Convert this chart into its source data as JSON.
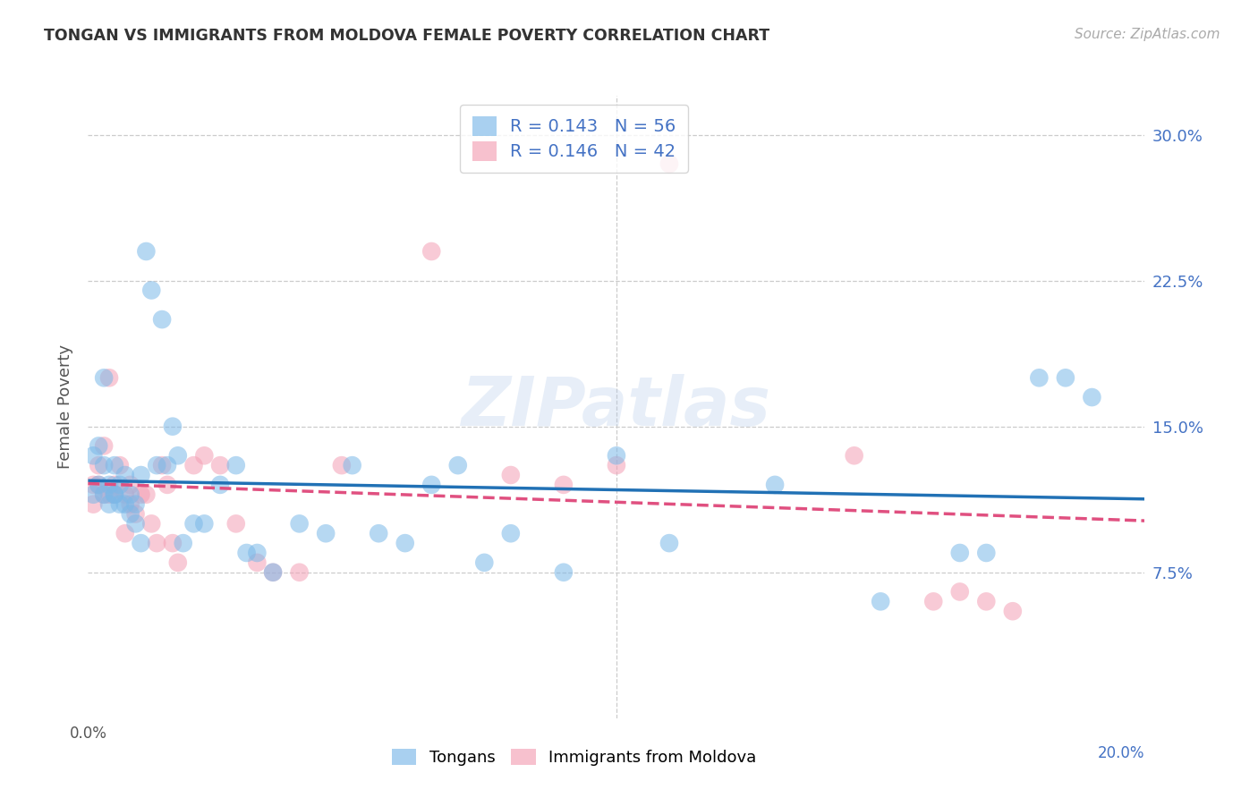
{
  "title": "TONGAN VS IMMIGRANTS FROM MOLDOVA FEMALE POVERTY CORRELATION CHART",
  "source": "Source: ZipAtlas.com",
  "ylabel": "Female Poverty",
  "xlim": [
    0.0,
    0.2
  ],
  "ylim": [
    0.0,
    0.32
  ],
  "ytick_positions": [
    0.0,
    0.075,
    0.15,
    0.225,
    0.3
  ],
  "ytick_labels": [
    "",
    "7.5%",
    "15.0%",
    "22.5%",
    "30.0%"
  ],
  "xtick_positions": [
    0.0,
    0.04,
    0.08,
    0.12,
    0.16,
    0.2
  ],
  "xtick_labels": [
    "0.0%",
    "",
    "",
    "",
    "",
    ""
  ],
  "legend_label1": "R = 0.143   N = 56",
  "legend_label2": "R = 0.146   N = 42",
  "legend_text_color": "#4472c4",
  "tongan_color": "#7bb8e8",
  "moldova_color": "#f4a0b5",
  "trendline_blue": "#2171b5",
  "trendline_pink": "#e05080",
  "background_color": "#ffffff",
  "grid_color": "#cccccc",
  "tongan_x": [
    0.001,
    0.001,
    0.002,
    0.002,
    0.003,
    0.003,
    0.003,
    0.004,
    0.004,
    0.005,
    0.005,
    0.005,
    0.006,
    0.006,
    0.007,
    0.007,
    0.008,
    0.008,
    0.009,
    0.009,
    0.01,
    0.01,
    0.011,
    0.012,
    0.013,
    0.014,
    0.015,
    0.016,
    0.017,
    0.018,
    0.02,
    0.022,
    0.025,
    0.028,
    0.03,
    0.032,
    0.035,
    0.04,
    0.045,
    0.05,
    0.055,
    0.06,
    0.065,
    0.07,
    0.075,
    0.08,
    0.09,
    0.1,
    0.11,
    0.13,
    0.15,
    0.165,
    0.17,
    0.18,
    0.185,
    0.19
  ],
  "tongan_y": [
    0.135,
    0.115,
    0.14,
    0.12,
    0.13,
    0.115,
    0.175,
    0.12,
    0.11,
    0.115,
    0.115,
    0.13,
    0.12,
    0.11,
    0.125,
    0.11,
    0.115,
    0.105,
    0.11,
    0.1,
    0.125,
    0.09,
    0.24,
    0.22,
    0.13,
    0.205,
    0.13,
    0.15,
    0.135,
    0.09,
    0.1,
    0.1,
    0.12,
    0.13,
    0.085,
    0.085,
    0.075,
    0.1,
    0.095,
    0.13,
    0.095,
    0.09,
    0.12,
    0.13,
    0.08,
    0.095,
    0.075,
    0.135,
    0.09,
    0.12,
    0.06,
    0.085,
    0.085,
    0.175,
    0.175,
    0.165
  ],
  "moldova_x": [
    0.001,
    0.001,
    0.002,
    0.002,
    0.003,
    0.003,
    0.004,
    0.004,
    0.005,
    0.005,
    0.006,
    0.007,
    0.007,
    0.008,
    0.008,
    0.009,
    0.01,
    0.011,
    0.012,
    0.013,
    0.014,
    0.015,
    0.016,
    0.017,
    0.02,
    0.022,
    0.025,
    0.028,
    0.032,
    0.035,
    0.04,
    0.048,
    0.065,
    0.08,
    0.09,
    0.1,
    0.11,
    0.145,
    0.16,
    0.165,
    0.17,
    0.175
  ],
  "moldova_y": [
    0.12,
    0.11,
    0.13,
    0.12,
    0.14,
    0.115,
    0.175,
    0.115,
    0.12,
    0.115,
    0.13,
    0.115,
    0.095,
    0.12,
    0.11,
    0.105,
    0.115,
    0.115,
    0.1,
    0.09,
    0.13,
    0.12,
    0.09,
    0.08,
    0.13,
    0.135,
    0.13,
    0.1,
    0.08,
    0.075,
    0.075,
    0.13,
    0.24,
    0.125,
    0.12,
    0.13,
    0.285,
    0.135,
    0.06,
    0.065,
    0.06,
    0.055
  ]
}
